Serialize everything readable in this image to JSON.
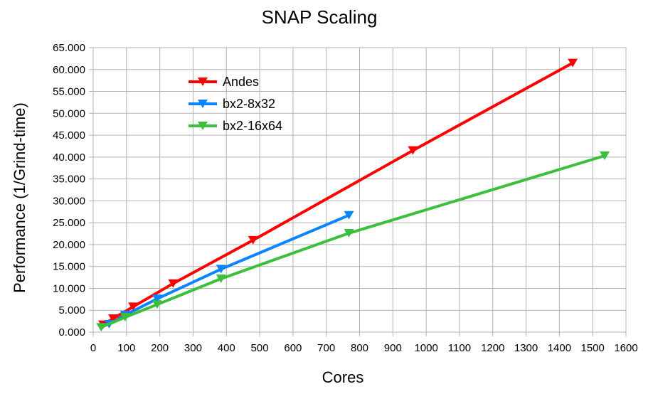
{
  "chart_data": {
    "type": "line",
    "title": "SNAP Scaling",
    "xlabel": "Cores",
    "ylabel": "Performance (1/Grind-time)",
    "xlim": [
      0,
      1600
    ],
    "ylim": [
      0,
      65
    ],
    "x_ticks": [
      "0",
      "100",
      "200",
      "300",
      "400",
      "500",
      "600",
      "700",
      "800",
      "900",
      "1000",
      "1100",
      "1200",
      "1300",
      "1400",
      "1500",
      "1600"
    ],
    "y_ticks": [
      "0.000",
      "5.000",
      "10.000",
      "15.000",
      "20.000",
      "25.000",
      "30.000",
      "35.000",
      "40.000",
      "45.000",
      "50.000",
      "55.000",
      "60.000",
      "65.000"
    ],
    "grid": true,
    "legend_position": "top-left inside plot",
    "marker": "triangle-down",
    "series": [
      {
        "name": "Andes",
        "color": "#ff0000",
        "points": [
          [
            30,
            1.7
          ],
          [
            60,
            3.1
          ],
          [
            120,
            5.8
          ],
          [
            240,
            11.1
          ],
          [
            480,
            21.0
          ],
          [
            960,
            41.5
          ],
          [
            1440,
            61.5
          ]
        ]
      },
      {
        "name": "bx2-8x32",
        "color": "#0a84ff",
        "points": [
          [
            48,
            1.8
          ],
          [
            96,
            3.9
          ],
          [
            192,
            7.6
          ],
          [
            384,
            14.4
          ],
          [
            768,
            26.7
          ]
        ]
      },
      {
        "name": "bx2-16x64",
        "color": "#3cbf3c",
        "points": [
          [
            24,
            1.1
          ],
          [
            96,
            3.4
          ],
          [
            192,
            6.3
          ],
          [
            384,
            12.2
          ],
          [
            768,
            22.6
          ],
          [
            1536,
            40.3
          ]
        ]
      }
    ]
  }
}
